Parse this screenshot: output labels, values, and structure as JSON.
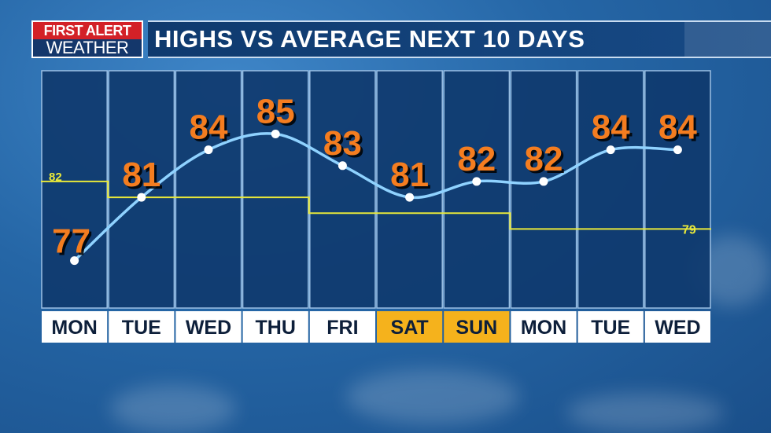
{
  "brand": {
    "line1": "FIRST ALERT",
    "line2": "WEATHER"
  },
  "title": "HIGHS VS AVERAGE NEXT 10 DAYS",
  "colors": {
    "panel": "#0f3a6e",
    "panel_border": "#9cc0e4",
    "highs_line": "#8fd2ff",
    "average_line": "#e8e83a",
    "high_label": "#f47d20",
    "weekend_label_bg": "#f5b21c",
    "weekday_label_bg": "#ffffff",
    "label_text": "#0d1f3a"
  },
  "chart_data": {
    "type": "line",
    "categories": [
      "MON",
      "TUE",
      "WED",
      "THU",
      "FRI",
      "SAT",
      "SUN",
      "MON",
      "TUE",
      "WED"
    ],
    "weekend": [
      false,
      false,
      false,
      false,
      false,
      true,
      true,
      false,
      false,
      false
    ],
    "series": [
      {
        "values": [
          77,
          81,
          84,
          85,
          83,
          81,
          82,
          82,
          84,
          84
        ]
      },
      {
        "values": [
          82,
          81,
          81,
          81,
          80,
          80,
          80,
          79,
          79,
          79
        ]
      }
    ],
    "average_start_label": "82",
    "average_end_label": "79",
    "ylim": [
      74,
      89
    ]
  }
}
